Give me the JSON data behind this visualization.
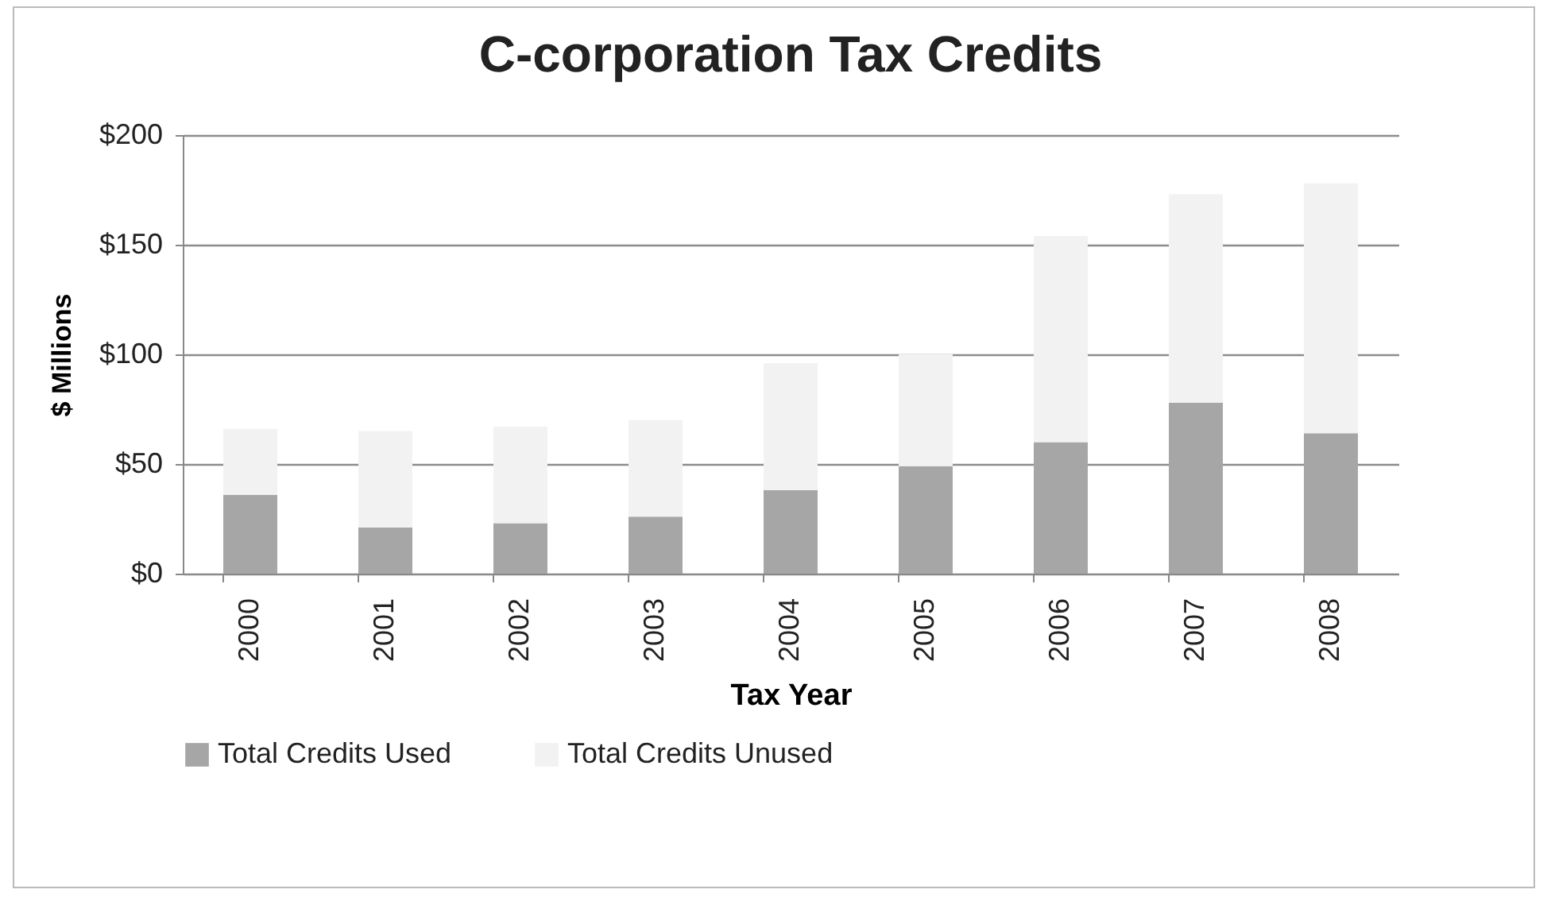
{
  "chart_data": {
    "type": "bar",
    "title": "C-corporation Tax Credits",
    "xlabel": "Tax Year",
    "ylabel": "$ Millions",
    "categories": [
      "2000",
      "2001",
      "2002",
      "2003",
      "2004",
      "2005",
      "2006",
      "2007",
      "2008"
    ],
    "stacked": true,
    "series": [
      {
        "name": "Total Credits Used",
        "color": "#a6a6a6",
        "values": [
          36,
          21,
          23,
          26,
          38,
          49,
          60,
          78,
          64
        ]
      },
      {
        "name": "Total Credits Unused",
        "color": "#f2f2f2",
        "values": [
          30,
          44,
          44,
          44,
          58,
          51,
          94,
          95,
          114
        ]
      }
    ],
    "ylim": [
      0,
      200
    ],
    "yticks": [
      {
        "value": 0,
        "label": "$0"
      },
      {
        "value": 50,
        "label": "$50"
      },
      {
        "value": 100,
        "label": "$100"
      },
      {
        "value": 150,
        "label": "$150"
      },
      {
        "value": 200,
        "label": "$200"
      }
    ],
    "grid": "y",
    "legend": "bottom"
  }
}
